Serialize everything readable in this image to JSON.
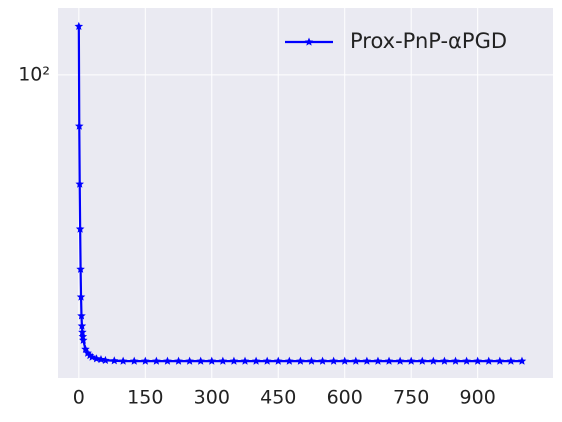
{
  "chart_data": {
    "type": "line",
    "x": [
      0,
      1,
      2,
      3,
      4,
      5,
      6,
      7,
      8,
      9,
      10,
      15,
      20,
      25,
      30,
      40,
      50,
      60,
      80,
      100,
      125,
      150,
      175,
      200,
      225,
      250,
      275,
      300,
      325,
      350,
      375,
      400,
      425,
      450,
      475,
      500,
      525,
      550,
      575,
      600,
      625,
      650,
      675,
      700,
      725,
      750,
      775,
      800,
      825,
      850,
      875,
      900,
      925,
      950,
      975,
      1000
    ],
    "series": [
      {
        "name": "Prox-PnP-αPGD",
        "color": "#0000ff",
        "values": [
          125,
          79,
          60.5,
          49.2,
          40.9,
          36,
          33,
          31.5,
          30.6,
          30,
          29.5,
          28.3,
          27.8,
          27.5,
          27.3,
          27.1,
          27,
          26.9,
          26.85,
          26.8,
          26.8,
          26.8,
          26.8,
          26.8,
          26.8,
          26.8,
          26.8,
          26.8,
          26.8,
          26.8,
          26.8,
          26.8,
          26.8,
          26.8,
          26.8,
          26.8,
          26.8,
          26.8,
          26.8,
          26.8,
          26.8,
          26.8,
          26.8,
          26.8,
          26.8,
          26.8,
          26.8,
          26.8,
          26.8,
          26.8,
          26.8,
          26.8,
          26.8,
          26.8,
          26.8,
          26.8
        ]
      }
    ],
    "xlim": [
      -47,
      1070
    ],
    "xticks": [
      0,
      150,
      300,
      450,
      600,
      750,
      900
    ],
    "ylim": [
      24.8,
      136
    ],
    "yticks": [
      {
        "value": 100,
        "label": "10²"
      }
    ],
    "log_y": true,
    "grid": true,
    "legend": "upper right",
    "marker": "star"
  }
}
